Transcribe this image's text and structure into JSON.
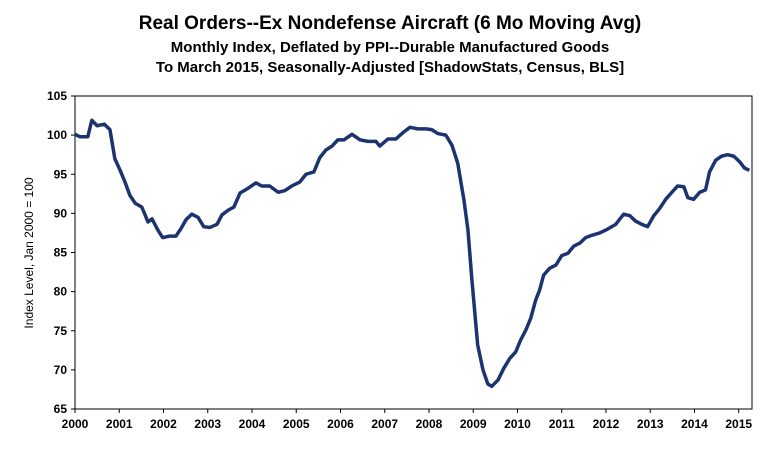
{
  "chart_data": {
    "type": "line",
    "title": "Real Orders--Ex Nondefense Aircraft (6 Mo Moving Avg)",
    "subtitle": "Monthly Index, Deflated by PPI--Durable Manufactured Goods",
    "subtitle2": "To March 2015, Seasonally-Adjusted [ShadowStats, Census, BLS]",
    "y_label": "Index Level, Jan 2000 = 100",
    "xlim": [
      2000,
      2015.3
    ],
    "xticks": [
      2000,
      2001,
      2002,
      2003,
      2004,
      2005,
      2006,
      2007,
      2008,
      2009,
      2010,
      2011,
      2012,
      2013,
      2014,
      2015
    ],
    "ylim": [
      65,
      105
    ],
    "yticks": [
      65,
      70,
      75,
      80,
      85,
      90,
      95,
      100,
      105
    ],
    "grid": false,
    "x": [
      2000.0,
      2000.11,
      2000.29,
      2000.38,
      2000.5,
      2000.66,
      2000.79,
      2000.9,
      2001.02,
      2001.13,
      2001.24,
      2001.36,
      2001.51,
      2001.65,
      2001.74,
      2001.87,
      2001.98,
      2002.14,
      2002.28,
      2002.39,
      2002.51,
      2002.64,
      2002.78,
      2002.91,
      2003.05,
      2003.21,
      2003.32,
      2003.46,
      2003.59,
      2003.73,
      2003.91,
      2004.09,
      2004.22,
      2004.4,
      2004.59,
      2004.74,
      2004.9,
      2005.08,
      2005.22,
      2005.4,
      2005.53,
      2005.67,
      2005.81,
      2005.94,
      2006.08,
      2006.26,
      2006.44,
      2006.62,
      2006.8,
      2006.89,
      2007.07,
      2007.25,
      2007.43,
      2007.57,
      2007.75,
      2007.93,
      2008.06,
      2008.2,
      2008.38,
      2008.52,
      2008.65,
      2008.79,
      2008.88,
      2008.97,
      2009.1,
      2009.22,
      2009.33,
      2009.42,
      2009.56,
      2009.69,
      2009.83,
      2009.96,
      2010.07,
      2010.19,
      2010.3,
      2010.41,
      2010.5,
      2010.59,
      2010.73,
      2010.87,
      2011.0,
      2011.14,
      2011.27,
      2011.41,
      2011.54,
      2011.68,
      2011.86,
      2012.04,
      2012.22,
      2012.4,
      2012.54,
      2012.67,
      2012.81,
      2012.94,
      2013.08,
      2013.21,
      2013.35,
      2013.49,
      2013.62,
      2013.76,
      2013.85,
      2013.98,
      2014.12,
      2014.25,
      2014.34,
      2014.48,
      2014.61,
      2014.75,
      2014.89,
      2015.02,
      2015.13,
      2015.24
    ],
    "series": [
      {
        "name": "Real Orders--Ex Nondefense Aircraft",
        "color": "#1c3370",
        "values": [
          100.1,
          99.8,
          99.8,
          101.9,
          101.2,
          101.4,
          100.7,
          97.0,
          95.5,
          94.0,
          92.3,
          91.3,
          90.8,
          88.9,
          89.3,
          87.9,
          86.9,
          87.1,
          87.1,
          88.0,
          89.2,
          89.9,
          89.5,
          88.3,
          88.2,
          88.6,
          89.8,
          90.4,
          90.8,
          92.6,
          93.2,
          93.9,
          93.5,
          93.5,
          92.7,
          92.9,
          93.5,
          94.0,
          95.0,
          95.3,
          97.1,
          98.1,
          98.6,
          99.4,
          99.4,
          100.1,
          99.4,
          99.2,
          99.2,
          98.6,
          99.5,
          99.5,
          100.4,
          101.0,
          100.8,
          100.8,
          100.7,
          100.2,
          100.0,
          98.7,
          96.4,
          91.7,
          87.9,
          81.5,
          73.2,
          70.0,
          68.2,
          67.9,
          68.7,
          70.2,
          71.5,
          72.3,
          73.8,
          75.1,
          76.6,
          78.9,
          80.2,
          82.1,
          83.0,
          83.4,
          84.6,
          84.9,
          85.8,
          86.2,
          86.9,
          87.2,
          87.5,
          88.0,
          88.6,
          89.9,
          89.7,
          89.0,
          88.6,
          88.3,
          89.7,
          90.6,
          91.8,
          92.7,
          93.5,
          93.4,
          92.0,
          91.8,
          92.7,
          93.0,
          95.3,
          96.8,
          97.3,
          97.5,
          97.3,
          96.6,
          95.8,
          95.5
        ]
      }
    ]
  }
}
